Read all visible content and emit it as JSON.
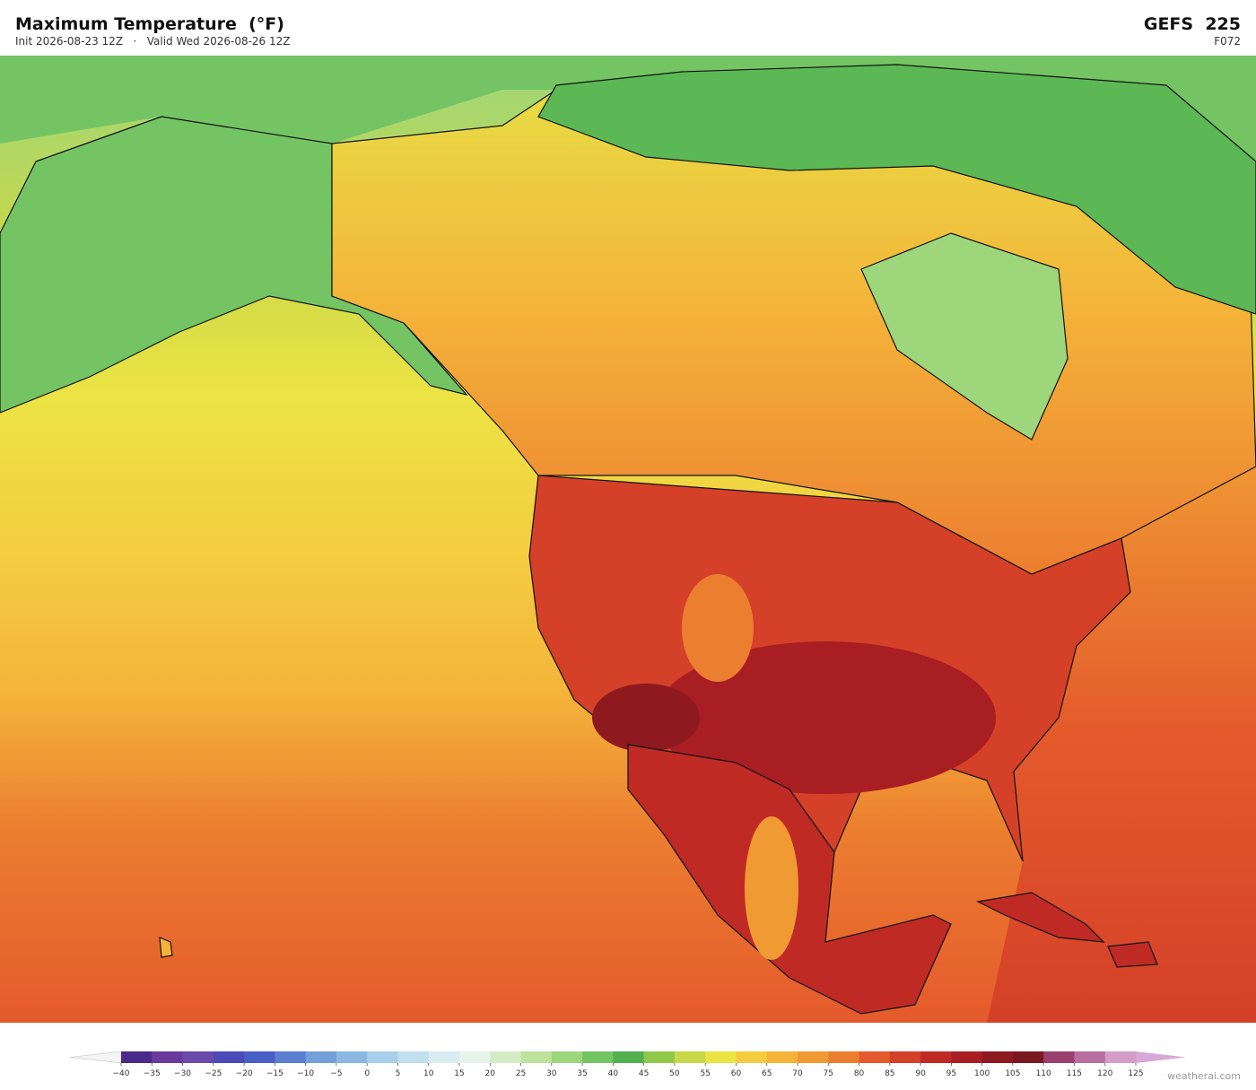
{
  "header": {
    "title": "Maximum Temperature  (°F)",
    "subtitle": "Init 2026-08-23 12Z   ·   Valid Wed 2026-08-26 12Z",
    "model": "GEFS  225",
    "forecast_hour": "F072"
  },
  "colorbar": {
    "ticks": [
      {
        "value": -40,
        "label": "−40"
      },
      {
        "value": -35,
        "label": "−35"
      },
      {
        "value": -30,
        "label": "−30"
      },
      {
        "value": -25,
        "label": "−25"
      },
      {
        "value": -20,
        "label": "−20"
      },
      {
        "value": -15,
        "label": "−15"
      },
      {
        "value": -10,
        "label": "−10"
      },
      {
        "value": -5,
        "label": "−5"
      },
      0,
      5,
      10,
      15,
      20,
      25,
      30,
      35,
      40,
      45,
      50,
      55,
      60,
      65,
      70,
      75,
      80,
      85,
      90,
      95,
      100,
      105,
      110,
      115,
      120,
      125
    ],
    "colors": [
      "#4a2a8a",
      "#6a3a9a",
      "#6a4aaa",
      "#4a4ab8",
      "#4a5ec8",
      "#5a7ed0",
      "#74a0d8",
      "#8ab8e0",
      "#a8d0ea",
      "#c0e0f0",
      "#d8ecf2",
      "#e6f4ea",
      "#d4ecc4",
      "#bce29c",
      "#9ed67c",
      "#74c464",
      "#52b050",
      "#90c84c",
      "#c8d848",
      "#ece444",
      "#f4cc40",
      "#f4b43a",
      "#f09a34",
      "#ec7e30",
      "#e45a2c",
      "#d44028",
      "#c02a24",
      "#a81e22",
      "#8e1a20",
      "#7a1820",
      "#9a4070",
      "#b86ea0",
      "#d49cc8"
    ],
    "under_color": "#f4f4f4",
    "over_color": "#d8a8d8"
  },
  "footer": {
    "brand": "weatherai.com"
  }
}
